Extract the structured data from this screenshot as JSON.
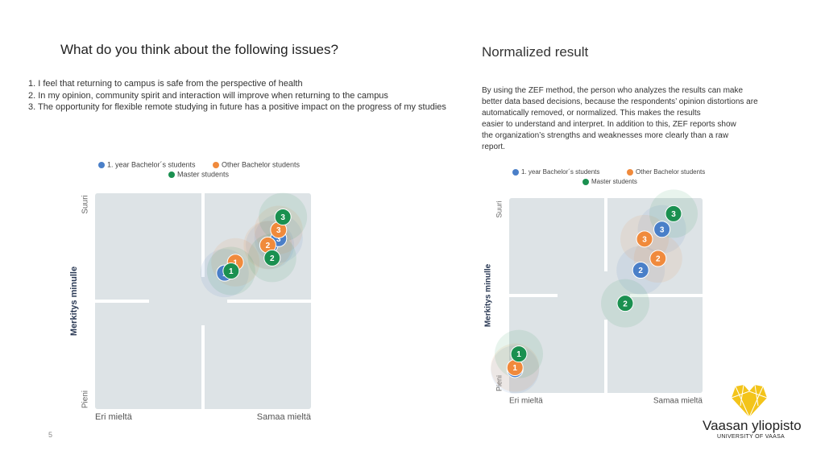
{
  "header": {
    "title": "What do you think about the following issues?",
    "items": [
      "1. I feel that returning to campus is safe from the perspective of health",
      "2. In my opinion, community spirit and interaction will improve when returning to the campus",
      "3. The opportunity for flexible remote studying in future has a positive impact on the progress of my studies"
    ]
  },
  "normalized": {
    "title": "Normalized result",
    "lines": [
      "By using the ZEF method, the person who analyzes the results can make",
      "better data based decisions, because the respondents’ opinion distortions are",
      "automatically removed, or normalized. This makes the results",
      "easier to understand and interpret. In addition to this, ZEF reports show",
      "the organization’s strengths and weaknesses more clearly than a raw",
      "report."
    ]
  },
  "page_number": "5",
  "logo": {
    "name": "Vaasan yliopisto",
    "subtitle": "UNIVERSITY OF VAASA"
  },
  "chart_data": [
    {
      "type": "scatter",
      "legend": "top",
      "ylabel": "Merkitys minulle",
      "x_labels": {
        "low": "Eri mieltä",
        "high": "Samaa mieltä"
      },
      "y_labels": {
        "low": "Pieni",
        "high": "Suuri"
      },
      "xlim": [
        0,
        100
      ],
      "ylim": [
        0,
        100
      ],
      "point_labels": [
        "1",
        "2",
        "3"
      ],
      "series": [
        {
          "name": "1. year Bachelor´s students",
          "color": "#4a7fc8",
          "x": [
            60,
            81,
            85
          ],
          "values": [
            63,
            76,
            79
          ]
        },
        {
          "name": "Other Bachelor students",
          "color": "#f08a3c",
          "x": [
            65,
            80,
            85
          ],
          "values": [
            68,
            76,
            83
          ]
        },
        {
          "name": "Master students",
          "color": "#1a9050",
          "x": [
            63,
            82,
            87
          ],
          "values": [
            64,
            70,
            89
          ]
        }
      ]
    },
    {
      "type": "scatter",
      "legend": "top",
      "ylabel": "Merkitys minulle",
      "x_labels": {
        "low": "Eri mieltä",
        "high": "Samaa mieltä"
      },
      "y_labels": {
        "low": "Pieni",
        "high": "Suuri"
      },
      "xlim": [
        0,
        100
      ],
      "ylim": [
        0,
        100
      ],
      "point_labels": [
        "1",
        "2",
        "3"
      ],
      "series": [
        {
          "name": "1. year Bachelor´s students",
          "color": "#4a7fc8",
          "x": [
            3,
            68,
            79
          ],
          "values": [
            12,
            63,
            84
          ]
        },
        {
          "name": "Other Bachelor students",
          "color": "#f08a3c",
          "x": [
            3,
            77,
            70
          ],
          "values": [
            13,
            69,
            79
          ]
        },
        {
          "name": "Master students",
          "color": "#1a9050",
          "x": [
            5,
            60,
            85
          ],
          "values": [
            20,
            46,
            92
          ]
        }
      ]
    }
  ]
}
